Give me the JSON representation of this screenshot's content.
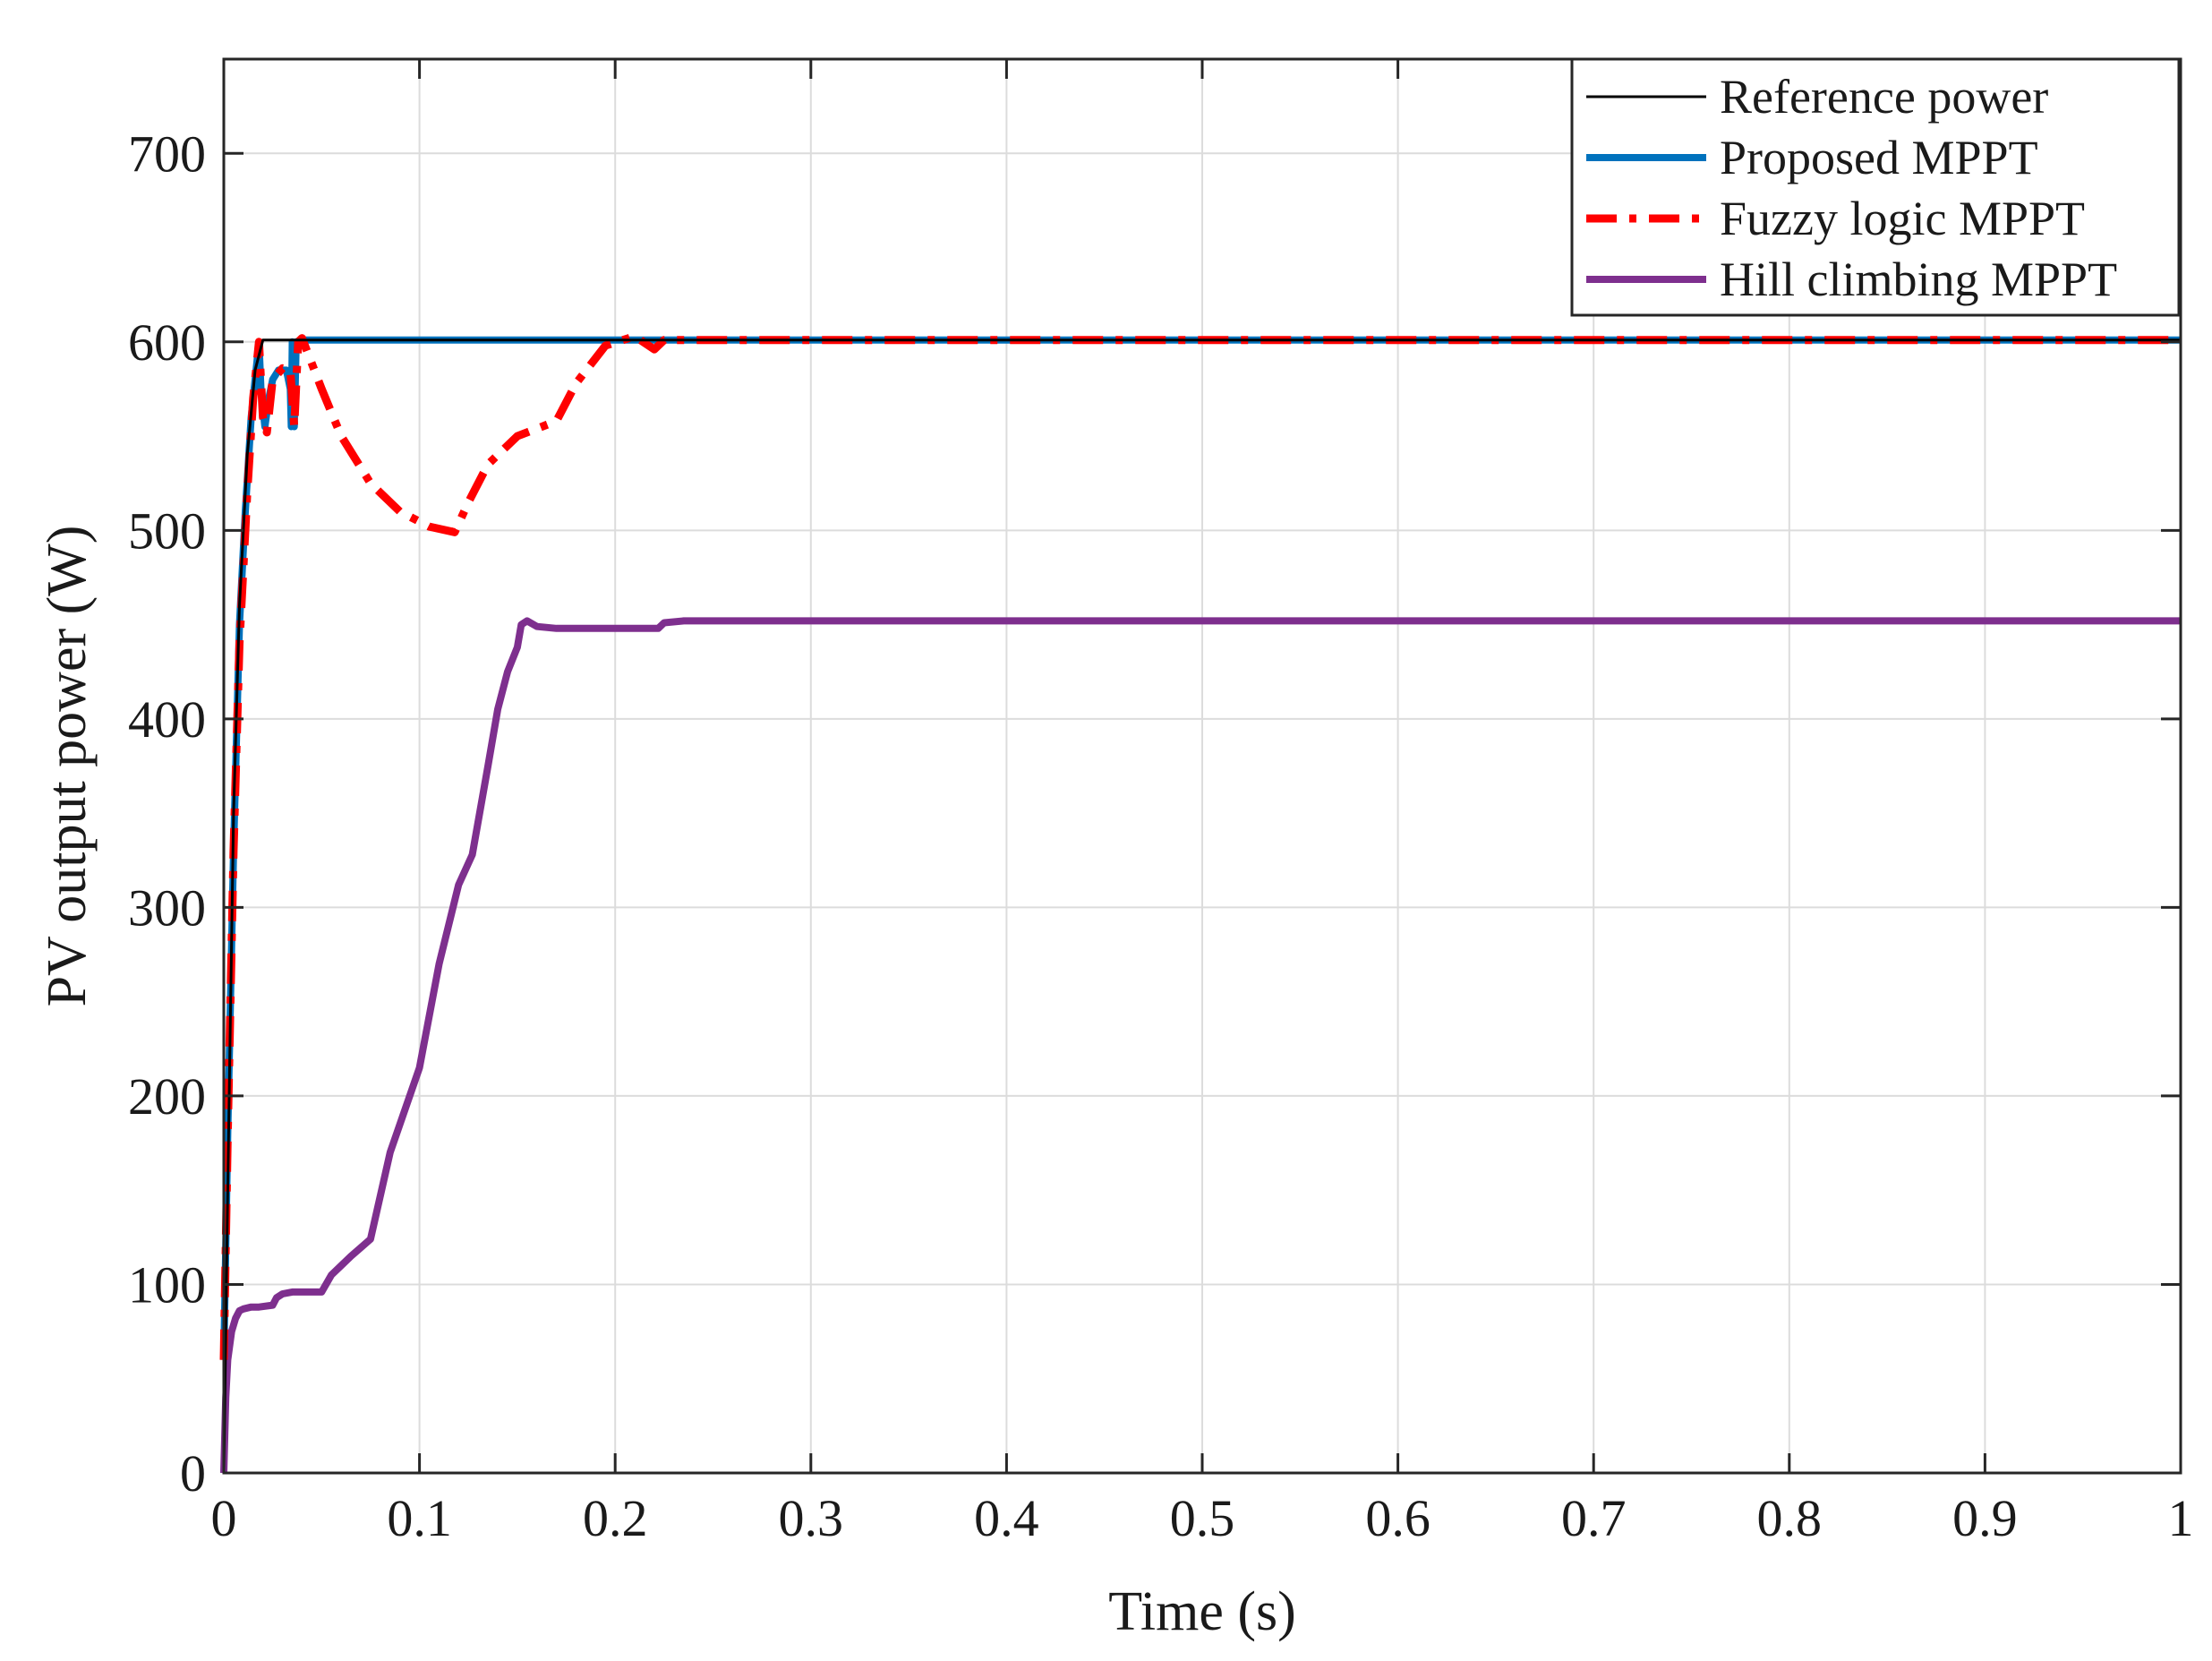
{
  "chart_data": {
    "type": "line",
    "title": "",
    "xlabel": "Time (s)",
    "ylabel": "PV output power (W)",
    "xlim": [
      0,
      1
    ],
    "ylim": [
      0,
      750
    ],
    "xticks": [
      0,
      0.1,
      0.2,
      0.3,
      0.4,
      0.5,
      0.6,
      0.7,
      0.8,
      0.9,
      1
    ],
    "xtick_labels": [
      "0",
      "0.1",
      "0.2",
      "0.3",
      "0.4",
      "0.5",
      "0.6",
      "0.7",
      "0.8",
      "0.9",
      "1"
    ],
    "yticks": [
      0,
      100,
      200,
      300,
      400,
      500,
      600,
      700
    ],
    "ytick_labels": [
      "0",
      "100",
      "200",
      "300",
      "400",
      "500",
      "600",
      "700"
    ],
    "grid": true,
    "legend_position": "top-right",
    "series": [
      {
        "name": "Reference power",
        "color": "#000000",
        "style": "solid-thin",
        "x": [
          0,
          0.002,
          0.005,
          0.008,
          0.012,
          0.016,
          0.02,
          0.025,
          0.03,
          0.035,
          0.04,
          0.1,
          0.2,
          0.3,
          0.5,
          0.7,
          1.0
        ],
        "y": [
          0,
          150,
          350,
          460,
          540,
          585,
          601,
          601,
          601,
          601,
          601,
          601,
          601,
          601,
          601,
          601,
          601
        ]
      },
      {
        "name": "Proposed MPPT",
        "color": "#0072BD",
        "style": "solid-thick",
        "x": [
          0,
          0.002,
          0.005,
          0.008,
          0.011,
          0.014,
          0.016,
          0.018,
          0.019,
          0.021,
          0.023,
          0.025,
          0.028,
          0.032,
          0.034,
          0.0345,
          0.035,
          0.036,
          0.037,
          0.04,
          0.1,
          0.3,
          0.5,
          0.7,
          1.0
        ],
        "y": [
          60,
          180,
          330,
          450,
          510,
          560,
          580,
          600,
          575,
          555,
          570,
          580,
          585,
          585,
          575,
          555,
          600,
          555,
          600,
          601,
          601,
          601,
          601,
          601,
          601
        ]
      },
      {
        "name": "Fuzzy logic MPPT",
        "color": "#FF0000",
        "style": "dash-dot",
        "x": [
          0,
          0.002,
          0.005,
          0.008,
          0.012,
          0.015,
          0.018,
          0.02,
          0.022,
          0.025,
          0.03,
          0.034,
          0.036,
          0.038,
          0.04,
          0.05,
          0.06,
          0.075,
          0.09,
          0.105,
          0.118,
          0.125,
          0.135,
          0.15,
          0.17,
          0.18,
          0.195,
          0.21,
          0.22,
          0.225,
          0.3,
          0.5,
          0.7,
          1.0
        ],
        "y": [
          60,
          180,
          330,
          440,
          520,
          570,
          600,
          560,
          552,
          580,
          586,
          585,
          555,
          600,
          602,
          575,
          550,
          525,
          510,
          502,
          499,
          515,
          535,
          550,
          558,
          578,
          598,
          603,
          596,
          601,
          601,
          601,
          601,
          601
        ]
      },
      {
        "name": "Hill climbing MPPT",
        "color": "#7E2F8E",
        "style": "solid-thick",
        "x": [
          0,
          0.001,
          0.002,
          0.004,
          0.006,
          0.008,
          0.01,
          0.014,
          0.018,
          0.025,
          0.027,
          0.03,
          0.035,
          0.04,
          0.05,
          0.055,
          0.065,
          0.075,
          0.085,
          0.1,
          0.11,
          0.12,
          0.127,
          0.135,
          0.14,
          0.145,
          0.15,
          0.152,
          0.155,
          0.16,
          0.17,
          0.18,
          0.2,
          0.222,
          0.225,
          0.235,
          0.3,
          0.5,
          0.7,
          1.0
        ],
        "y": [
          0,
          40,
          60,
          75,
          82,
          86,
          87,
          88,
          88,
          89,
          93,
          95,
          96,
          96,
          96,
          105,
          115,
          124,
          170,
          215,
          270,
          312,
          328,
          375,
          405,
          425,
          438,
          450,
          452,
          449,
          448,
          448,
          448,
          448,
          451,
          452,
          452,
          452,
          452,
          452
        ]
      }
    ]
  }
}
